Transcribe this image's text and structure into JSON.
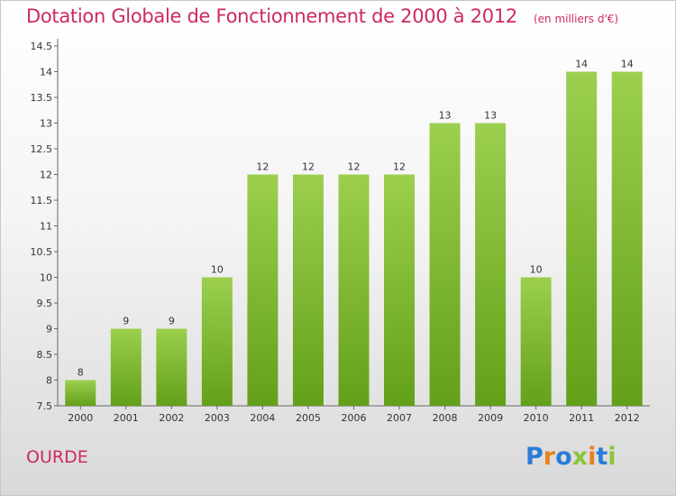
{
  "title": "Dotation Globale de Fonctionnement de 2000 à 2012",
  "unit": "(en milliers d'€)",
  "commune": "OURDE",
  "logo": {
    "letters": [
      "P",
      "r",
      "o",
      "x",
      "i",
      "t",
      "i"
    ]
  },
  "colors": {
    "title": "#cc2966",
    "bar_top": "#9ccf4e",
    "bar_bottom": "#63a01a"
  },
  "chart_data": {
    "type": "bar",
    "title": "Dotation Globale de Fonctionnement de 2000 à 2012",
    "subtitle": "(en milliers d'€)",
    "categories": [
      "2000",
      "2001",
      "2002",
      "2003",
      "2004",
      "2005",
      "2006",
      "2007",
      "2008",
      "2009",
      "2010",
      "2011",
      "2012"
    ],
    "values": [
      8,
      9,
      9,
      10,
      12,
      12,
      12,
      12,
      13,
      13,
      10,
      14,
      14
    ],
    "data_labels": [
      "8",
      "9",
      "9",
      "10",
      "12",
      "12",
      "12",
      "12",
      "13",
      "13",
      "10",
      "14",
      "14"
    ],
    "ylim": [
      7.5,
      14.5
    ],
    "yticks": [
      "7.5",
      "8",
      "8.5",
      "9",
      "9.5",
      "10",
      "10.5",
      "11",
      "11.5",
      "12",
      "12.5",
      "13",
      "13.5",
      "14",
      "14.5"
    ],
    "grid": false,
    "xlabel": "",
    "ylabel": ""
  }
}
